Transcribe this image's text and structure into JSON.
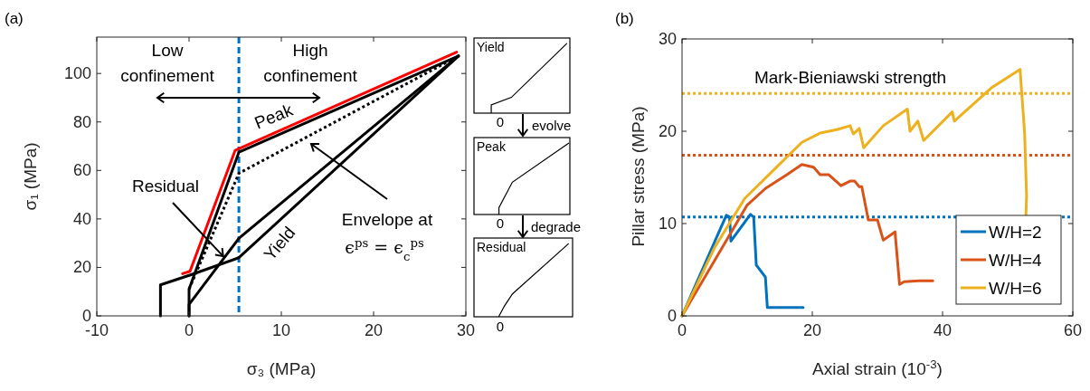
{
  "chart_data": [
    {
      "type": "line",
      "title": "(a)",
      "xlabel": "σ₃ (MPa)",
      "ylabel": "σ₁ (MPa)",
      "xlim": [
        -10,
        30
      ],
      "ylim": [
        0,
        115
      ],
      "xticks": [
        -10,
        0,
        10,
        20,
        30
      ],
      "yticks": [
        0,
        20,
        40,
        60,
        80,
        100
      ],
      "grid": false,
      "legend": false,
      "series": [
        {
          "color": "#ff0000",
          "x": [
            -0.7,
            0.1,
            5.0,
            29.0
          ],
          "values": [
            17.4,
            18.4,
            68.3,
            108.8
          ]
        },
        {
          "color": "#000000",
          "x": [
            0,
            0,
            5.4,
            29.2
          ],
          "values": [
            0,
            11,
            67.5,
            107.2
          ]
        },
        {
          "color": "#000000",
          "line_style": "dotted",
          "x": [
            0,
            5.4,
            29.2
          ],
          "values": [
            11,
            58.8,
            107.2
          ]
        },
        {
          "color": "#000000",
          "x": [
            0,
            0,
            5.4,
            29.2
          ],
          "values": [
            0,
            4.7,
            32,
            107.2
          ]
        },
        {
          "color": "#000000",
          "x": [
            -3.1,
            -3.1,
            0.3,
            5.4,
            29.2
          ],
          "values": [
            0,
            12.8,
            17.1,
            24,
            107.2
          ]
        }
      ],
      "ref_lines": [
        {
          "axis": "x",
          "value": 5.4,
          "color": "#0072bd",
          "line_style": "dashed"
        }
      ],
      "annotations": [
        "Low confinement",
        "High confinement",
        "Peak",
        "Yield",
        {
          "text": "Residual",
          "x": 3.7,
          "y": 24.6
        },
        "Envelope at",
        "ϵ$^{ps}$ = ϵ$_{c}$$^{ps}$"
      ]
    },
    {
      "type": "other",
      "title": "Yield",
      "annotations": [
        "0",
        "evolve"
      ]
    },
    {
      "type": "other",
      "title": "Peak",
      "annotations": [
        "0",
        "degrade"
      ]
    },
    {
      "type": "other",
      "title": "Residual",
      "annotations": [
        "0"
      ]
    },
    {
      "type": "line",
      "title": "(b)",
      "xlabel": "Axial strain (10$^{-3}$)",
      "ylabel": "Pillar stress (MPa)",
      "xlim": [
        0,
        60
      ],
      "ylim": [
        0,
        30
      ],
      "xticks": [
        0,
        20,
        40,
        60
      ],
      "yticks": [
        0,
        10,
        20,
        30
      ],
      "grid": false,
      "legend": "bottom right",
      "series": [
        {
          "name": "W/H=2",
          "color": "#0072bd",
          "x": [
            0,
            6.8,
            7.3,
            7.5,
            10.5,
            11.0,
            11.4,
            12.8,
            13.1,
            13.8,
            18.6
          ],
          "values": [
            0,
            10.9,
            10.7,
            8.1,
            11.0,
            10.7,
            5.5,
            4.2,
            0.9,
            0.9,
            0.9
          ]
        },
        {
          "name": "W/H=4",
          "color": "#d95319",
          "x": [
            0,
            10,
            12.8,
            16.1,
            18.4,
            20.2,
            21.2,
            22.5,
            24.4,
            25.8,
            26.5,
            27.2,
            27.6,
            28.6,
            30,
            30.9,
            32.7,
            33.4,
            34.1,
            36.4,
            38.5
          ],
          "values": [
            0,
            12,
            13.8,
            15.3,
            16.4,
            16.1,
            15.3,
            15.3,
            14.1,
            14.6,
            14.6,
            14.0,
            14.0,
            10.4,
            10.4,
            8.2,
            9.1,
            3.4,
            3.7,
            3.8,
            3.8
          ]
        },
        {
          "name": "W/H=6",
          "color": "#edb120",
          "x": [
            0,
            5,
            9.6,
            14.2,
            18.4,
            21.2,
            23.9,
            25.8,
            26.3,
            27.2,
            27.9,
            30.9,
            34.6,
            35,
            36.2,
            37.1,
            41.5,
            41.8,
            47.5,
            51.9,
            52.6,
            52.9,
            52.8
          ],
          "values": [
            0,
            7.4,
            12.7,
            15.9,
            18.8,
            19.8,
            20.2,
            20.6,
            19.7,
            20.3,
            18.2,
            20.6,
            22.4,
            20,
            21.1,
            19,
            22.1,
            21.1,
            24.7,
            26.7,
            19.8,
            13,
            10.8
          ]
        }
      ],
      "ref_lines": [
        {
          "axis": "y",
          "value": 24.1,
          "color": "#edb120",
          "line_style": "dotted"
        },
        {
          "axis": "y",
          "value": 17.4,
          "color": "#d95319",
          "line_style": "dotted"
        },
        {
          "axis": "y",
          "value": 10.7,
          "color": "#0072bd",
          "line_style": "dotted"
        }
      ],
      "annotations": [
        "Mark-Bieniawski strength"
      ]
    }
  ]
}
